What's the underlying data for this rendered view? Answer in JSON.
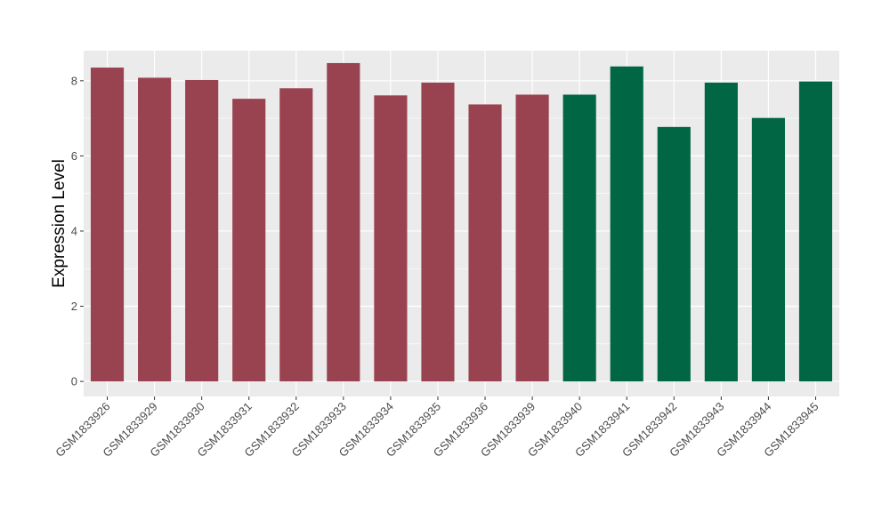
{
  "chart_data": {
    "type": "bar",
    "title": "",
    "xlabel": "",
    "ylabel": "Expression Level",
    "ylim": [
      -0.4,
      8.8
    ],
    "yticks": [
      0,
      2,
      4,
      6,
      8
    ],
    "grid": true,
    "legend": "none",
    "categories": [
      "GSM1833926",
      "GSM1833929",
      "GSM1833930",
      "GSM1833931",
      "GSM1833932",
      "GSM1833933",
      "GSM1833934",
      "GSM1833935",
      "GSM1833936",
      "GSM1833939",
      "GSM1833940",
      "GSM1833941",
      "GSM1833942",
      "GSM1833943",
      "GSM1833944",
      "GSM1833945"
    ],
    "values": [
      8.35,
      8.08,
      8.02,
      7.52,
      7.8,
      8.47,
      7.61,
      7.95,
      7.37,
      7.63,
      7.63,
      8.38,
      6.77,
      7.95,
      7.01,
      7.98
    ],
    "groups": [
      0,
      0,
      0,
      0,
      0,
      0,
      0,
      0,
      0,
      0,
      1,
      1,
      1,
      1,
      1,
      1
    ],
    "group_colors": [
      "#9a4350",
      "#006644"
    ],
    "panel_background": "#ebebeb",
    "grid_color": "#ffffff"
  }
}
